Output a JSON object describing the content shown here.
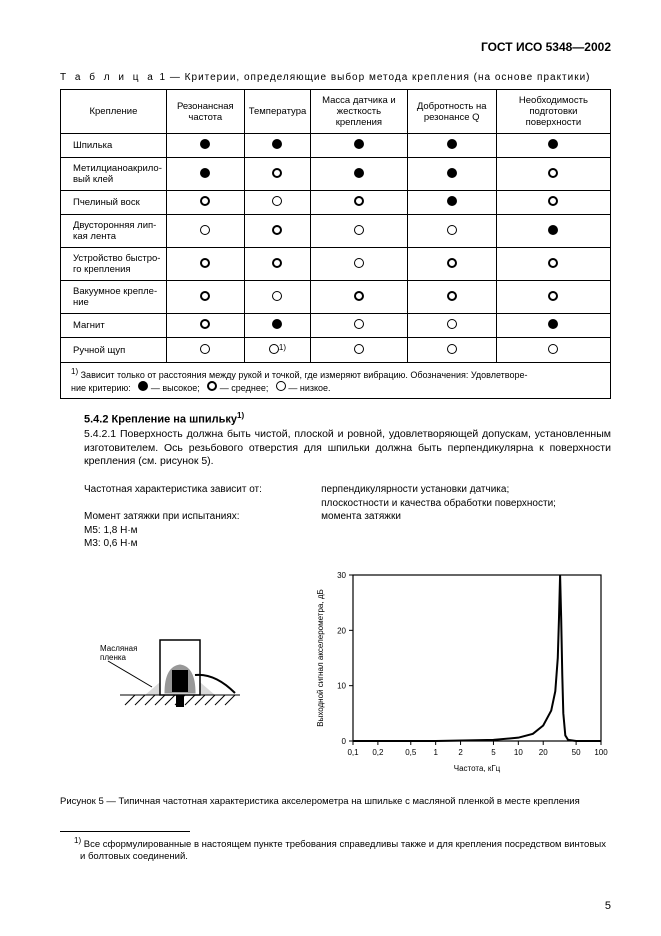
{
  "header": {
    "standard": "ГОСТ ИСО 5348—2002"
  },
  "table": {
    "caption_prefix": "Т а б л и ц а",
    "caption_rest": " 1 — Критерии, определяющие выбор метода крепления (на основе практики)",
    "headers": [
      "Крепление",
      "Резонансная частота",
      "Температура",
      "Масса датчика и жесткость крепления",
      "Добротность на резонансе Q",
      "Необходимость подготовки поверхности"
    ],
    "rows": [
      {
        "label": "Шпилька",
        "cells": [
          "filled",
          "filled",
          "filled",
          "filled",
          "filled"
        ]
      },
      {
        "label": "Метилцианоакрило-\nвый клей",
        "cells": [
          "filled",
          "bold",
          "filled",
          "filled",
          "bold"
        ]
      },
      {
        "label": "Пчелиный воск",
        "cells": [
          "bold",
          "thin",
          "bold",
          "filled",
          "bold"
        ]
      },
      {
        "label": "Двусторонняя лип-\nкая лента",
        "cells": [
          "thin",
          "bold",
          "thin",
          "thin",
          "filled"
        ]
      },
      {
        "label": "Устройство быстро-\nго крепления",
        "cells": [
          "bold",
          "bold",
          "thin",
          "bold",
          "bold"
        ]
      },
      {
        "label": "Вакуумное крепле-\nние",
        "cells": [
          "bold",
          "thin",
          "bold",
          "bold",
          "bold"
        ]
      },
      {
        "label": "Магнит",
        "cells": [
          "bold",
          "filled",
          "thin",
          "thin",
          "filled"
        ]
      },
      {
        "label": "Ручной щуп",
        "cells": [
          "thin",
          "thin_sup",
          "thin",
          "thin",
          "thin"
        ]
      }
    ],
    "note_sup": "1)",
    "note_line1": " Зависит только от расстояния между рукой и точкой, где измеряют вибрацию. Обозначения: Удовлетворе-",
    "note_line2": "ние критерию:",
    "legend": {
      "high": "— высокое;",
      "medium": "— среднее;",
      "low": "— низкое."
    }
  },
  "section": {
    "heading": "5.4.2 Крепление на шпильку",
    "heading_sup": "1)",
    "para": "5.4.2.1 Поверхность должна быть чистой, плоской и ровной, удовлетворяющей допускам, установленным изготовителем. Ось резьбового отверстия для шпильки должна быть перпендикулярна к поверхности крепления (см. рисунок 5)."
  },
  "two_col": {
    "left_title": "Частотная характеристика зависит от:",
    "right_l1": "перпендикулярности установки датчика;",
    "right_l2": "плоскостности и качества обработки поверхности;",
    "right_l3": "момента затяжки",
    "torque_title": "Момент затяжки при испытаниях:",
    "torque_m5": "M5: 1,8 Н·м",
    "torque_m3": "M3: 0,6 Н·м"
  },
  "figure": {
    "label": "Масляная\nпленка",
    "y_label": "Выходной сигнал акселерометра, дБ",
    "x_label": "Частота, кГц",
    "caption": "Рисунок 5 — Типичная частотная характеристика акселерометра на шпильке с масляной пленкой в месте крепления"
  },
  "footnote": {
    "sup": "1)",
    "text": " Все сформулированные в настоящем пункте требования справедливы также и для крепления посредством винтовых и болтовых соединений."
  },
  "page_number": "5",
  "chart": {
    "type": "line-logx",
    "x_ticks": [
      "0,1",
      "0,2",
      "0,5",
      "1",
      "2",
      "5",
      "10",
      "20",
      "50",
      "100"
    ],
    "y_ticks": [
      "0",
      "10",
      "20",
      "30"
    ],
    "ylim": [
      0,
      30
    ],
    "line_color": "#000000",
    "line_width": 2,
    "background_color": "#ffffff",
    "axis_color": "#000000",
    "tick_fontsize": 8,
    "label_fontsize": 8,
    "points": [
      [
        0.1,
        0
      ],
      [
        1,
        0
      ],
      [
        5,
        0.2
      ],
      [
        10,
        0.6
      ],
      [
        15,
        1.3
      ],
      [
        20,
        2.8
      ],
      [
        25,
        5.5
      ],
      [
        28,
        9
      ],
      [
        30,
        15
      ],
      [
        31,
        22
      ],
      [
        32,
        30
      ],
      [
        33,
        22
      ],
      [
        34,
        12
      ],
      [
        35,
        5
      ],
      [
        37,
        1
      ],
      [
        40,
        0.2
      ],
      [
        50,
        0
      ],
      [
        100,
        0
      ]
    ]
  }
}
